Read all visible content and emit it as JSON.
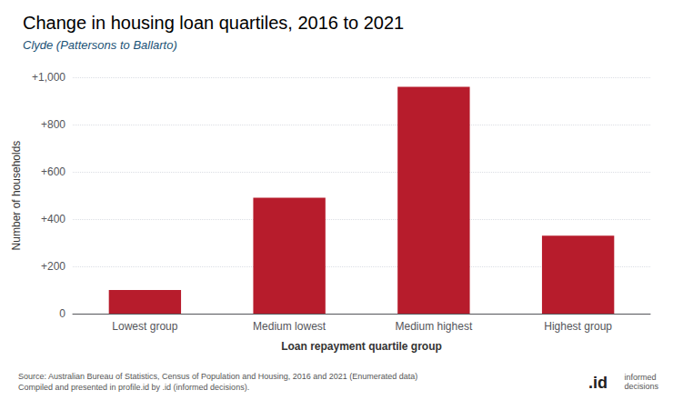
{
  "chart_data": {
    "type": "bar",
    "title": "Change in housing loan quartiles, 2016 to 2021",
    "subtitle": "Clyde (Pattersons to Ballarto)",
    "categories": [
      "Lowest group",
      "Medium lowest",
      "Medium highest",
      "Highest group"
    ],
    "values": [
      100,
      490,
      960,
      330
    ],
    "color": "#b71c2c",
    "xlabel": "Loan repayment quartile group",
    "ylabel": "Number of households",
    "ylim": [
      0,
      1000
    ],
    "yticks": [
      0,
      {
        "value": 200,
        "label": "+200"
      },
      {
        "value": 400,
        "label": "+400"
      },
      {
        "value": 600,
        "label": "+600"
      },
      {
        "value": 800,
        "label": "+800"
      },
      {
        "value": 1000,
        "label": "+1,000"
      }
    ],
    "grid": true,
    "annotations": [
      "Source: Australian Bureau of Statistics, Census of Population and Housing, 2016 and 2021 (Enumerated data)\nCompiled and presented in profile.id by .id (informed decisions).",
      ".id",
      "informed\ndecisions"
    ]
  }
}
